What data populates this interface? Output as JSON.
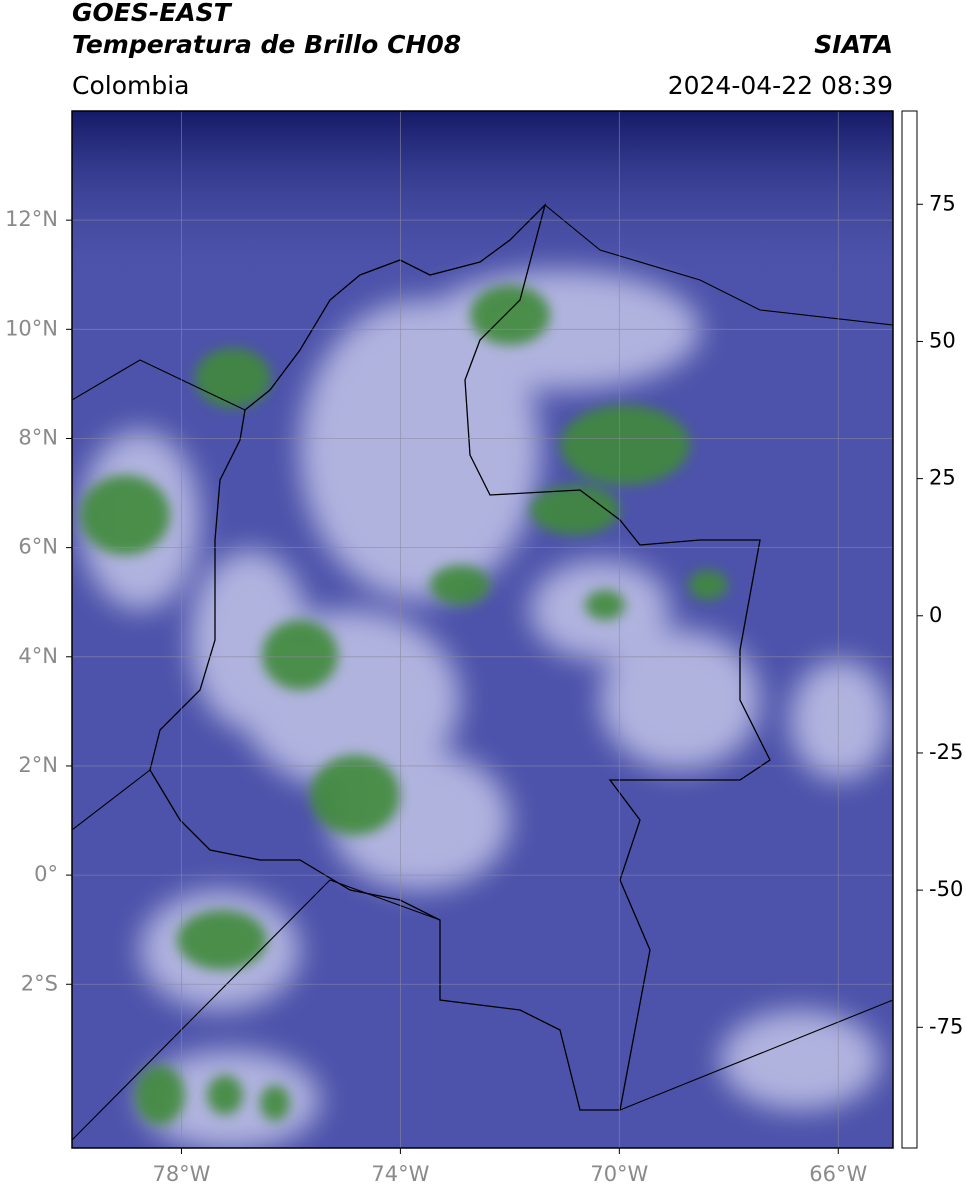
{
  "header": {
    "title": "GOES-EAST",
    "subtitle": "Temperatura de Brillo CH08",
    "source": "SIATA",
    "region": "Colombia",
    "datetime": "2024-04-22 08:39"
  },
  "map": {
    "xlim": [
      -80,
      -65
    ],
    "ylim": [
      -5,
      14
    ],
    "grid": true,
    "xticks": [
      {
        "value": -78,
        "label": "78°W"
      },
      {
        "value": -74,
        "label": "74°W"
      },
      {
        "value": -70,
        "label": "70°W"
      },
      {
        "value": -66,
        "label": "66°W"
      }
    ],
    "yticks": [
      {
        "value": 12,
        "label": "12°N"
      },
      {
        "value": 10,
        "label": "10°N"
      },
      {
        "value": 8,
        "label": "8°N"
      },
      {
        "value": 6,
        "label": "6°N"
      },
      {
        "value": 4,
        "label": "4°N"
      },
      {
        "value": 2,
        "label": "2°N"
      },
      {
        "value": 0,
        "label": "0°"
      },
      {
        "value": -2,
        "label": "2°S"
      }
    ]
  },
  "colorbar": {
    "lim": [
      -97,
      92
    ],
    "ticks": [
      75,
      50,
      25,
      0,
      -25,
      -50,
      -75
    ],
    "colormap": [
      {
        "value": -97,
        "color": "#ffffff"
      },
      {
        "value": -93,
        "color": "#ffffff"
      },
      {
        "value": -93,
        "color": "#00e8e8"
      },
      {
        "value": -82,
        "color": "#18a890"
      },
      {
        "value": -70,
        "color": "#2e8a2e"
      },
      {
        "value": -60,
        "color": "#6aa84e"
      },
      {
        "value": -55,
        "color": "#cfe4c0"
      },
      {
        "value": -50,
        "color": "#ffffff"
      },
      {
        "value": -45,
        "color": "#c8c8e8"
      },
      {
        "value": -35,
        "color": "#5258b0"
      },
      {
        "value": -30,
        "color": "#1a2080"
      },
      {
        "value": -27,
        "color": "#0a0a60"
      },
      {
        "value": -24,
        "color": "#404040"
      },
      {
        "value": -19,
        "color": "#808040"
      },
      {
        "value": -14,
        "color": "#f0f000"
      },
      {
        "value": -6,
        "color": "#ffa000"
      },
      {
        "value": 0,
        "color": "#ff7000"
      },
      {
        "value": 8,
        "color": "#ff0000"
      },
      {
        "value": 8,
        "color": "#000000"
      },
      {
        "value": 92,
        "color": "#000000"
      }
    ]
  }
}
